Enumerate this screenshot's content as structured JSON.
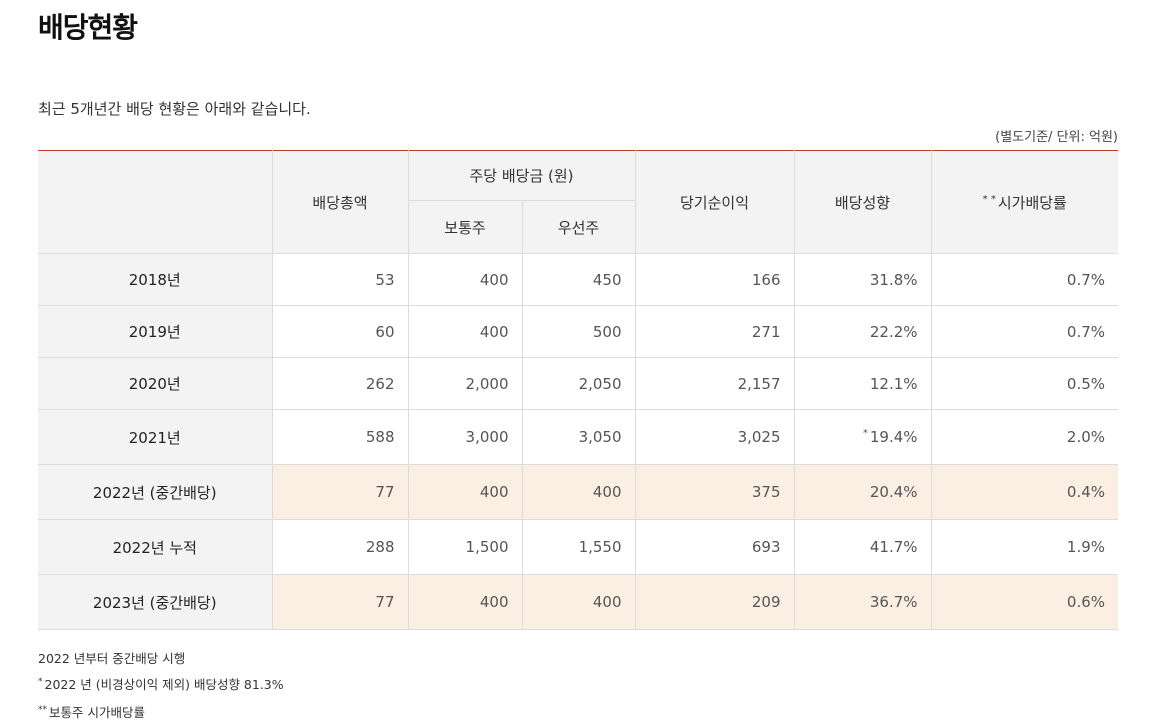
{
  "page": {
    "title": "배당현황",
    "intro": "최근 5개년간 배당 현황은 아래와 같습니다.",
    "unit_note": "(별도기준/ 단위: 억원)"
  },
  "table": {
    "headers": {
      "total": "배당총액",
      "per_share": "주당 배당금 (원)",
      "common": "보통주",
      "preferred": "우선주",
      "net_income": "당기순이익",
      "payout": "배당성향",
      "yield_mark": "* *",
      "yield": "시가배당률"
    },
    "rows": [
      {
        "year": "2018년",
        "total": "53",
        "common": "400",
        "preferred": "450",
        "net_income": "166",
        "payout_mark": "",
        "payout": "31.8%",
        "yield": "0.7%",
        "highlight": false
      },
      {
        "year": "2019년",
        "total": "60",
        "common": "400",
        "preferred": "500",
        "net_income": "271",
        "payout_mark": "",
        "payout": "22.2%",
        "yield": "0.7%",
        "highlight": false
      },
      {
        "year": "2020년",
        "total": "262",
        "common": "2,000",
        "preferred": "2,050",
        "net_income": "2,157",
        "payout_mark": "",
        "payout": "12.1%",
        "yield": "0.5%",
        "highlight": false
      },
      {
        "year": "2021년",
        "total": "588",
        "common": "3,000",
        "preferred": "3,050",
        "net_income": "3,025",
        "payout_mark": "*",
        "payout": "19.4%",
        "yield": "2.0%",
        "highlight": false
      },
      {
        "year": "2022년 (중간배당)",
        "total": "77",
        "common": "400",
        "preferred": "400",
        "net_income": "375",
        "payout_mark": "",
        "payout": "20.4%",
        "yield": "0.4%",
        "highlight": true
      },
      {
        "year": "2022년 누적",
        "total": "288",
        "common": "1,500",
        "preferred": "1,550",
        "net_income": "693",
        "payout_mark": "",
        "payout": "41.7%",
        "yield": "1.9%",
        "highlight": false
      },
      {
        "year": "2023년 (중간배당)",
        "total": "77",
        "common": "400",
        "preferred": "400",
        "net_income": "209",
        "payout_mark": "",
        "payout": "36.7%",
        "yield": "0.6%",
        "highlight": true
      }
    ]
  },
  "footnotes": {
    "note1": "2022 년부터 중간배당 시행",
    "note2_mark": "*",
    "note2": "2022 년 (비경상이익 제외) 배당성향 81.3%",
    "note3_mark": "**",
    "note3": "보통주 시가배당률"
  },
  "colors": {
    "top_border": "#c0392b",
    "header_bg": "#f3f3f3",
    "highlight_row_bg": "#fbefe4"
  }
}
